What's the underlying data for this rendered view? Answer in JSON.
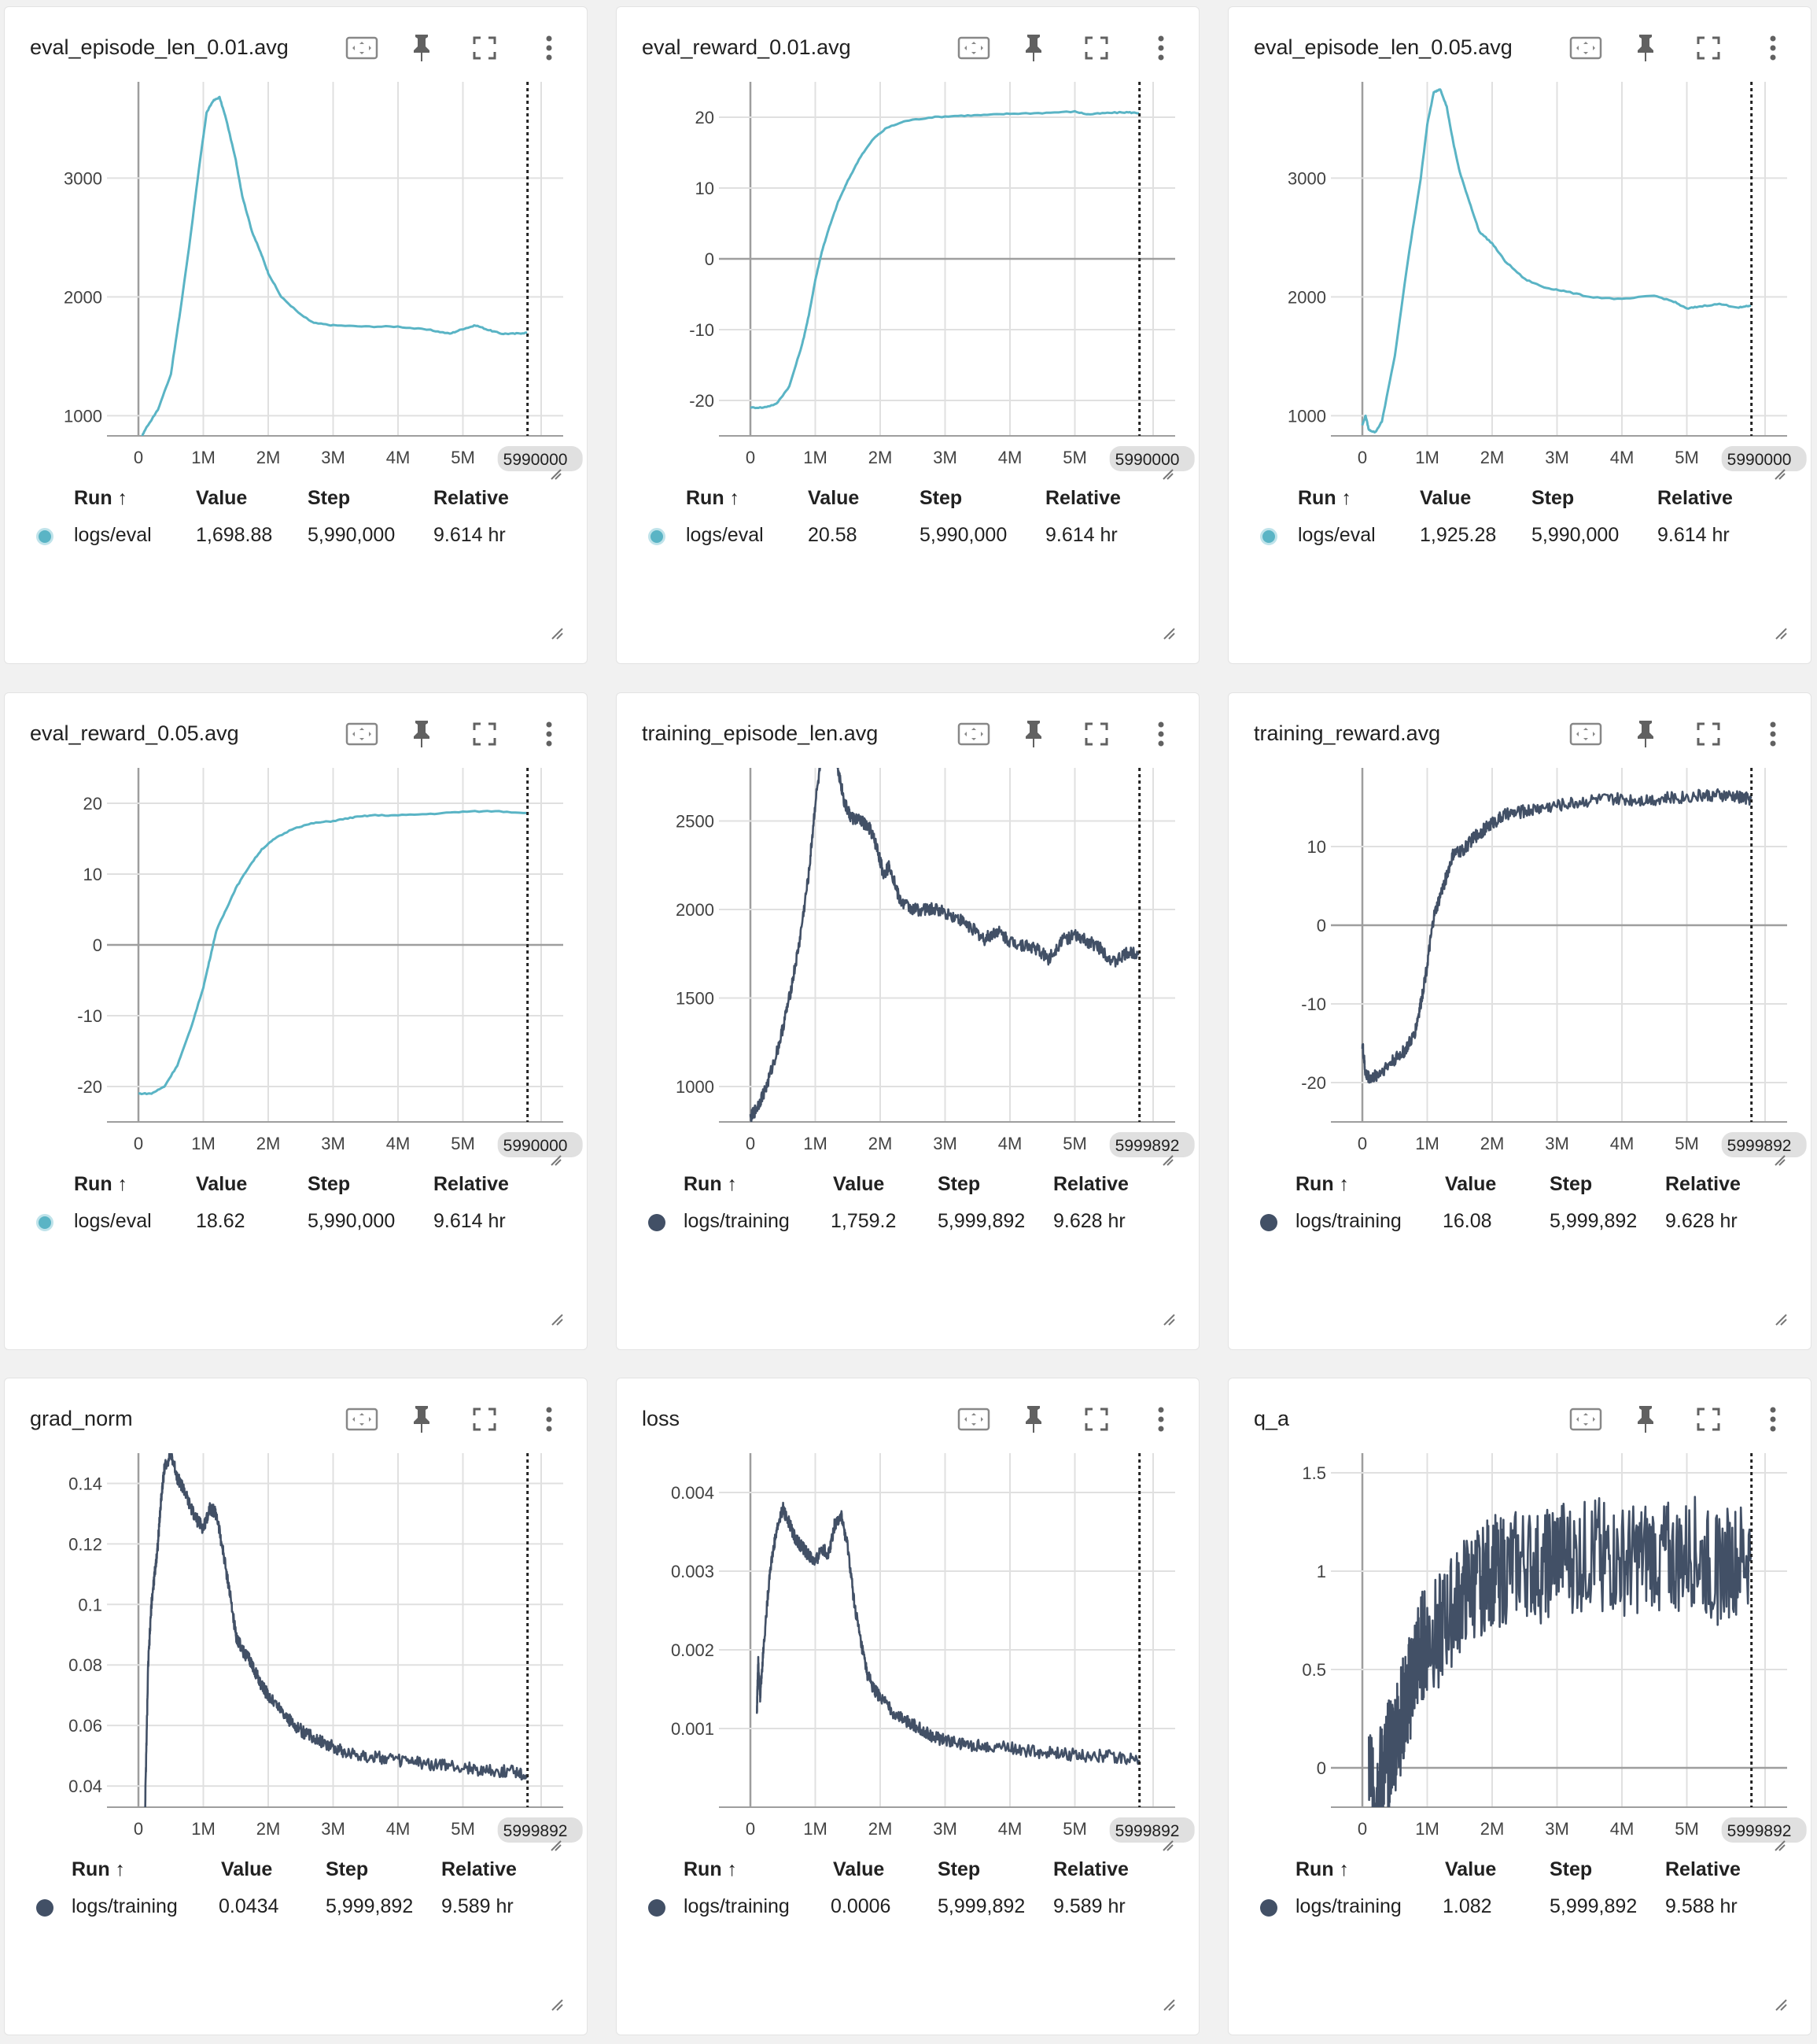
{
  "colors": {
    "eval": "#5ab4c5",
    "training": "#425066"
  },
  "table_headers": {
    "run": "Run ↑",
    "value": "Value",
    "step": "Step",
    "relative": "Relative"
  },
  "icons": [
    "fit-domain-icon",
    "pin-icon",
    "fullscreen-icon",
    "more-vert-icon"
  ],
  "cards": [
    {
      "title": "eval_episode_len_0.01.avg",
      "run": "logs/eval",
      "value": "1,698.88",
      "step": "5,990,000",
      "relative": "9.614 hr",
      "color_key": "eval",
      "step_badge": "5990000",
      "chart_data": {
        "type": "line",
        "x_ticks": [
          "0",
          "1M",
          "2M",
          "3M",
          "4M",
          "5M"
        ],
        "y_ticks": [
          "1000",
          "2000",
          "3000"
        ],
        "ylim": [
          830,
          3810
        ],
        "xlim": [
          -0.01,
          6.5
        ],
        "series": [
          {
            "x": [
              0,
              0.05,
              0.1,
              0.3,
              0.5,
              0.65,
              0.8,
              0.95,
              1.05,
              1.15,
              1.25,
              1.35,
              1.5,
              1.6,
              1.75,
              1.9,
              2.0,
              2.2,
              2.5,
              2.7,
              3.0,
              3.5,
              4.0,
              4.5,
              4.8,
              5.0,
              5.2,
              5.4,
              5.6,
              5.8,
              5.99
            ],
            "y": [
              780,
              820,
              880,
              1050,
              1350,
              1900,
              2500,
              3150,
              3550,
              3650,
              3680,
              3500,
              3150,
              2850,
              2550,
              2350,
              2200,
              2000,
              1850,
              1780,
              1760,
              1750,
              1750,
              1720,
              1690,
              1730,
              1760,
              1720,
              1690,
              1690,
              1699
            ]
          }
        ]
      }
    },
    {
      "title": "eval_reward_0.01.avg",
      "run": "logs/eval",
      "value": "20.58",
      "step": "5,990,000",
      "relative": "9.614 hr",
      "color_key": "eval",
      "step_badge": "5990000",
      "chart_data": {
        "type": "line",
        "x_ticks": [
          "0",
          "1M",
          "2M",
          "3M",
          "4M",
          "5M"
        ],
        "y_ticks": [
          "-20",
          "-10",
          "0",
          "10",
          "20"
        ],
        "ylim": [
          -25,
          25
        ],
        "xlim": [
          -0.01,
          6.5
        ],
        "series": [
          {
            "x": [
              0,
              0.2,
              0.4,
              0.6,
              0.8,
              0.9,
              1.0,
              1.1,
              1.2,
              1.35,
              1.5,
              1.7,
              1.9,
              2.1,
              2.4,
              2.8,
              3.2,
              3.6,
              4.0,
              4.5,
              5.0,
              5.2,
              5.5,
              5.8,
              5.99
            ],
            "y": [
              -21,
              -21,
              -20.5,
              -18,
              -12,
              -8,
              -3,
              1,
              4,
              8,
              11,
              14.5,
              17,
              18.5,
              19.5,
              20,
              20.2,
              20.3,
              20.5,
              20.6,
              20.8,
              20.4,
              20.6,
              20.7,
              20.58
            ]
          }
        ]
      }
    },
    {
      "title": "eval_episode_len_0.05.avg",
      "run": "logs/eval",
      "value": "1,925.28",
      "step": "5,990,000",
      "relative": "9.614 hr",
      "color_key": "eval",
      "step_badge": "5990000",
      "chart_data": {
        "type": "line",
        "x_ticks": [
          "0",
          "1M",
          "2M",
          "3M",
          "4M",
          "5M"
        ],
        "y_ticks": [
          "1000",
          "2000",
          "3000"
        ],
        "ylim": [
          830,
          3810
        ],
        "xlim": [
          -0.01,
          6.5
        ],
        "series": [
          {
            "x": [
              0,
              0.05,
              0.1,
              0.2,
              0.3,
              0.5,
              0.7,
              0.9,
              1.0,
              1.1,
              1.2,
              1.3,
              1.4,
              1.5,
              1.65,
              1.8,
              2.0,
              2.2,
              2.5,
              2.8,
              3.1,
              3.5,
              4.0,
              4.5,
              4.8,
              5.0,
              5.2,
              5.5,
              5.8,
              5.99
            ],
            "y": [
              920,
              1000,
              880,
              860,
              950,
              1500,
              2300,
              3000,
              3450,
              3720,
              3750,
              3600,
              3300,
              3050,
              2800,
              2550,
              2450,
              2300,
              2150,
              2080,
              2050,
              2000,
              1980,
              2010,
              1960,
              1900,
              1920,
              1940,
              1910,
              1925
            ]
          }
        ]
      }
    },
    {
      "title": "eval_reward_0.05.avg",
      "run": "logs/eval",
      "value": "18.62",
      "step": "5,990,000",
      "relative": "9.614 hr",
      "color_key": "eval",
      "step_badge": "5990000",
      "chart_data": {
        "type": "line",
        "x_ticks": [
          "0",
          "1M",
          "2M",
          "3M",
          "4M",
          "5M"
        ],
        "y_ticks": [
          "-20",
          "-10",
          "0",
          "10",
          "20"
        ],
        "ylim": [
          -25,
          25
        ],
        "xlim": [
          -0.01,
          6.5
        ],
        "series": [
          {
            "x": [
              0,
              0.2,
              0.4,
              0.6,
              0.8,
              1.0,
              1.1,
              1.2,
              1.35,
              1.5,
              1.7,
              1.9,
              2.1,
              2.4,
              2.7,
              3.0,
              3.3,
              3.6,
              4.0,
              4.5,
              5.0,
              5.5,
              5.99
            ],
            "y": [
              -21,
              -21,
              -20,
              -17,
              -12,
              -6,
              -2,
              2,
              5,
              8,
              11,
              13.5,
              15,
              16.5,
              17.2,
              17.5,
              18,
              18.3,
              18.3,
              18.5,
              18.8,
              18.9,
              18.62
            ]
          }
        ]
      }
    },
    {
      "title": "training_episode_len.avg",
      "run": "logs/training",
      "value": "1,759.2",
      "step": "5,999,892",
      "relative": "9.628 hr",
      "color_key": "training",
      "step_badge": "5999892",
      "chart_data": {
        "type": "line",
        "x_ticks": [
          "0",
          "1M",
          "2M",
          "3M",
          "4M",
          "5M"
        ],
        "y_ticks": [
          "1000",
          "1500",
          "2000",
          "2500"
        ],
        "ylim": [
          800,
          2800
        ],
        "xlim": [
          -0.01,
          6.5
        ],
        "series": [
          {
            "x": [
              0,
              0.1,
              0.25,
              0.45,
              0.6,
              0.75,
              0.9,
              1.0,
              1.15,
              1.3,
              1.35,
              1.45,
              1.55,
              1.7,
              1.85,
              1.95,
              2.05,
              2.15,
              2.3,
              2.5,
              2.7,
              2.9,
              3.2,
              3.4,
              3.6,
              3.8,
              4.0,
              4.2,
              4.4,
              4.6,
              4.8,
              5.0,
              5.2,
              5.4,
              5.6,
              5.8,
              5.99
            ],
            "y": [
              820,
              880,
              1000,
              1250,
              1500,
              1800,
              2200,
              2600,
              3000,
              2950,
              2800,
              2600,
              2520,
              2500,
              2450,
              2350,
              2200,
              2250,
              2050,
              2000,
              2000,
              2000,
              1950,
              1900,
              1830,
              1880,
              1820,
              1800,
              1780,
              1720,
              1830,
              1850,
              1820,
              1780,
              1700,
              1750,
              1759
            ]
          }
        ]
      }
    },
    {
      "title": "training_reward.avg",
      "run": "logs/training",
      "value": "16.08",
      "step": "5,999,892",
      "relative": "9.628 hr",
      "color_key": "training",
      "step_badge": "5999892",
      "chart_data": {
        "type": "line",
        "x_ticks": [
          "0",
          "1M",
          "2M",
          "3M",
          "4M",
          "5M"
        ],
        "y_ticks": [
          "-20",
          "-10",
          "0",
          "10"
        ],
        "ylim": [
          -25,
          20
        ],
        "xlim": [
          -0.01,
          6.5
        ],
        "series": [
          {
            "x": [
              0,
              0.05,
              0.15,
              0.3,
              0.5,
              0.65,
              0.8,
              0.9,
              1.0,
              1.1,
              1.25,
              1.4,
              1.55,
              1.7,
              1.85,
              2.0,
              2.2,
              2.5,
              2.8,
              3.2,
              3.6,
              4.0,
              4.4,
              4.8,
              5.2,
              5.5,
              5.8,
              5.99
            ],
            "y": [
              -15,
              -19,
              -19.5,
              -18.5,
              -17,
              -16,
              -14,
              -10,
              -5,
              1,
              5,
              9,
              9.5,
              11,
              12,
              13,
              14,
              14.5,
              15,
              15.5,
              16,
              16,
              16,
              16.2,
              16.5,
              16.5,
              16.3,
              16.08
            ]
          }
        ]
      }
    },
    {
      "title": "grad_norm",
      "run": "logs/training",
      "value": "0.0434",
      "step": "5,999,892",
      "relative": "9.589 hr",
      "color_key": "training",
      "step_badge": "5999892",
      "chart_data": {
        "type": "line",
        "x_ticks": [
          "0",
          "1M",
          "2M",
          "3M",
          "4M",
          "5M"
        ],
        "y_ticks": [
          "0.04",
          "0.06",
          "0.08",
          "0.1",
          "0.12",
          "0.14"
        ],
        "ylim": [
          0.033,
          0.15
        ],
        "xlim": [
          -0.01,
          6.5
        ],
        "series": [
          {
            "x": [
              0.1,
              0.15,
              0.2,
              0.25,
              0.3,
              0.35,
              0.4,
              0.5,
              0.6,
              0.7,
              0.8,
              0.9,
              1.0,
              1.1,
              1.2,
              1.3,
              1.4,
              1.5,
              1.6,
              1.7,
              1.8,
              1.9,
              2.0,
              2.2,
              2.4,
              2.6,
              2.8,
              3.0,
              3.2,
              3.5,
              3.8,
              4.2,
              4.6,
              5.0,
              5.4,
              5.8,
              5.99
            ],
            "y": [
              0.03,
              0.08,
              0.1,
              0.11,
              0.12,
              0.135,
              0.145,
              0.15,
              0.142,
              0.138,
              0.132,
              0.128,
              0.125,
              0.132,
              0.13,
              0.118,
              0.105,
              0.09,
              0.085,
              0.082,
              0.078,
              0.073,
              0.07,
              0.065,
              0.06,
              0.057,
              0.055,
              0.053,
              0.051,
              0.05,
              0.049,
              0.048,
              0.047,
              0.046,
              0.045,
              0.045,
              0.0434
            ]
          }
        ]
      }
    },
    {
      "title": "loss",
      "run": "logs/training",
      "value": "0.0006",
      "step": "5,999,892",
      "relative": "9.589 hr",
      "color_key": "training",
      "step_badge": "5999892",
      "chart_data": {
        "type": "line",
        "x_ticks": [
          "0",
          "1M",
          "2M",
          "3M",
          "4M",
          "5M"
        ],
        "y_ticks": [
          "0.001",
          "0.002",
          "0.003",
          "0.004"
        ],
        "ylim": [
          0,
          0.0045
        ],
        "xlim": [
          -0.01,
          6.5
        ],
        "series": [
          {
            "x": [
              0.1,
              0.12,
              0.15,
              0.2,
              0.3,
              0.4,
              0.5,
              0.6,
              0.7,
              0.8,
              0.9,
              1.0,
              1.1,
              1.2,
              1.3,
              1.4,
              1.5,
              1.6,
              1.7,
              1.8,
              1.9,
              2.0,
              2.2,
              2.4,
              2.6,
              2.8,
              3.0,
              3.3,
              3.6,
              4.0,
              4.4,
              4.8,
              5.2,
              5.6,
              5.99
            ],
            "y": [
              0.0012,
              0.0019,
              0.0014,
              0.002,
              0.003,
              0.0035,
              0.0038,
              0.0036,
              0.0034,
              0.0033,
              0.0032,
              0.0031,
              0.0033,
              0.0032,
              0.0036,
              0.0037,
              0.0033,
              0.0026,
              0.0021,
              0.0017,
              0.0015,
              0.0014,
              0.0012,
              0.0011,
              0.001,
              0.0009,
              0.00085,
              0.0008,
              0.00078,
              0.00075,
              0.0007,
              0.00068,
              0.00065,
              0.00065,
              0.0006
            ]
          }
        ]
      }
    },
    {
      "title": "q_a",
      "run": "logs/training",
      "value": "1.082",
      "step": "5,999,892",
      "relative": "9.588 hr",
      "color_key": "training",
      "step_badge": "5999892",
      "chart_data": {
        "type": "line",
        "x_ticks": [
          "0",
          "1M",
          "2M",
          "3M",
          "4M",
          "5M"
        ],
        "y_ticks": [
          "0",
          "0.5",
          "1",
          "1.5"
        ],
        "ylim": [
          -0.2,
          1.6
        ],
        "xlim": [
          -0.01,
          6.5
        ],
        "series": [
          {
            "x": [
              0.1,
              0.2,
              0.3,
              0.4,
              0.5,
              0.6,
              0.7,
              0.8,
              0.9,
              1.0,
              1.2,
              1.4,
              1.6,
              1.8,
              2.0,
              2.2,
              2.5,
              2.8,
              3.0,
              3.3,
              3.6,
              3.9,
              4.2,
              4.5,
              4.8,
              5.1,
              5.4,
              5.7,
              5.99
            ],
            "y": [
              0,
              -0.12,
              -0.05,
              0.05,
              0.15,
              0.25,
              0.35,
              0.5,
              0.6,
              0.65,
              0.7,
              0.8,
              0.9,
              0.95,
              1.0,
              1.0,
              1.05,
              1.0,
              1.1,
              1.05,
              1.1,
              1.05,
              1.05,
              1.1,
              1.05,
              1.1,
              1.0,
              1.05,
              1.082
            ]
          }
        ]
      }
    }
  ]
}
